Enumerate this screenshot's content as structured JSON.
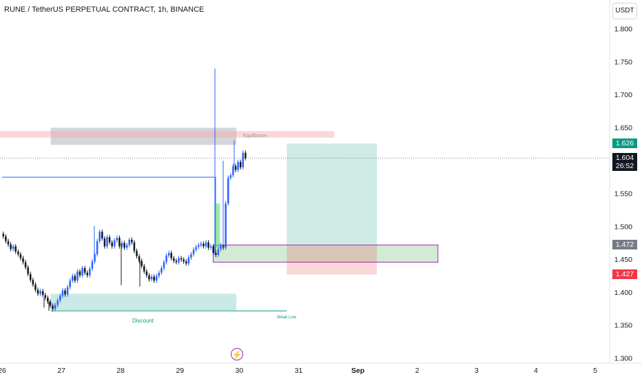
{
  "header": {
    "title": "RUNE / TetherUS PERPETUAL CONTRACT, 1h, BINANCE",
    "currency": "USDT"
  },
  "price_labels": {
    "target": "1.626",
    "last": "1.604",
    "countdown": "26:52",
    "entry": "1.472",
    "stop": "1.427"
  },
  "annotations": {
    "equilibrium": "Equilibrium",
    "discount": "Discount",
    "weak_low": "Weak Low"
  },
  "colors": {
    "bull": "#2962ff",
    "bear": "#131722",
    "target_bg": "#089981",
    "last_bg": "#131722",
    "entry_bg": "#787b86",
    "stop_bg": "#f23645"
  },
  "chart_data": {
    "type": "candlestick",
    "title": "RUNE / TetherUS PERPETUAL CONTRACT, 1h, BINANCE",
    "y_axis": {
      "ticks": [
        "1.800",
        "1.750",
        "1.700",
        "1.650",
        "1.600",
        "1.550",
        "1.500",
        "1.450",
        "1.400",
        "1.350",
        "1.300"
      ],
      "ylim": [
        1.29,
        1.825
      ]
    },
    "x_axis": {
      "ticks": [
        "26",
        "27",
        "28",
        "29",
        "30",
        "31",
        "Sep",
        "2",
        "3",
        "4",
        "5"
      ]
    },
    "start_day": 26.0,
    "candle_hours": 1,
    "closes": [
      1.485,
      1.478,
      1.473,
      1.466,
      1.47,
      1.462,
      1.458,
      1.452,
      1.446,
      1.438,
      1.428,
      1.419,
      1.412,
      1.404,
      1.398,
      1.402,
      1.396,
      1.392,
      1.386,
      1.38,
      1.375,
      1.381,
      1.388,
      1.395,
      1.403,
      1.397,
      1.408,
      1.418,
      1.425,
      1.418,
      1.432,
      1.426,
      1.437,
      1.43,
      1.426,
      1.436,
      1.447,
      1.458,
      1.478,
      1.492,
      1.482,
      1.47,
      1.484,
      1.476,
      1.47,
      1.479,
      1.483,
      1.47,
      1.475,
      1.468,
      1.472,
      1.48,
      1.476,
      1.463,
      1.455,
      1.448,
      1.44,
      1.432,
      1.426,
      1.42,
      1.424,
      1.418,
      1.425,
      1.43,
      1.437,
      1.446,
      1.456,
      1.46,
      1.452,
      1.448,
      1.446,
      1.452,
      1.45,
      1.447,
      1.444,
      1.453,
      1.458,
      1.465,
      1.469,
      1.472,
      1.474,
      1.47,
      1.476,
      1.468,
      1.47,
      1.46,
      1.457,
      1.466,
      1.472,
      1.468,
      1.535,
      1.574,
      1.578,
      1.592,
      1.586,
      1.598,
      1.59,
      1.612,
      1.604
    ],
    "wicks": [
      [
        64,
        1.377
      ],
      [
        71,
        1.372
      ],
      [
        137,
        1.501
      ],
      [
        176,
        1.411
      ],
      [
        203,
        1.409
      ],
      [
        312,
        1.74
      ],
      [
        324,
        1.6
      ],
      [
        340,
        1.631
      ]
    ],
    "reference_lines": [
      {
        "price": 1.604,
        "style": "dotted",
        "label": "1.604"
      },
      {
        "price": 1.575,
        "from_day": 26.0,
        "to_day": 29.6
      }
    ],
    "zones": [
      {
        "name": "Equilibrium",
        "y": [
          1.624,
          1.65
        ],
        "x_days": [
          26.82,
          29.95
        ]
      },
      {
        "name": "supply",
        "y": [
          1.635,
          1.645
        ],
        "x_days": [
          25.9,
          31.6
        ]
      },
      {
        "name": "demand",
        "y": [
          1.446,
          1.472
        ],
        "x_days": [
          29.56,
          33.35
        ]
      },
      {
        "name": "Discount",
        "y": [
          1.373,
          1.398
        ],
        "x_days": [
          26.82,
          29.95
        ]
      },
      {
        "name": "Weak Low",
        "y": [
          1.372,
          1.372
        ],
        "x_days": [
          26.82,
          30.8
        ]
      }
    ],
    "position": {
      "side": "long",
      "entry": 1.472,
      "target": 1.626,
      "stop": 1.427,
      "x_days": [
        30.8,
        32.32
      ]
    },
    "grid": false,
    "legend": "none"
  }
}
